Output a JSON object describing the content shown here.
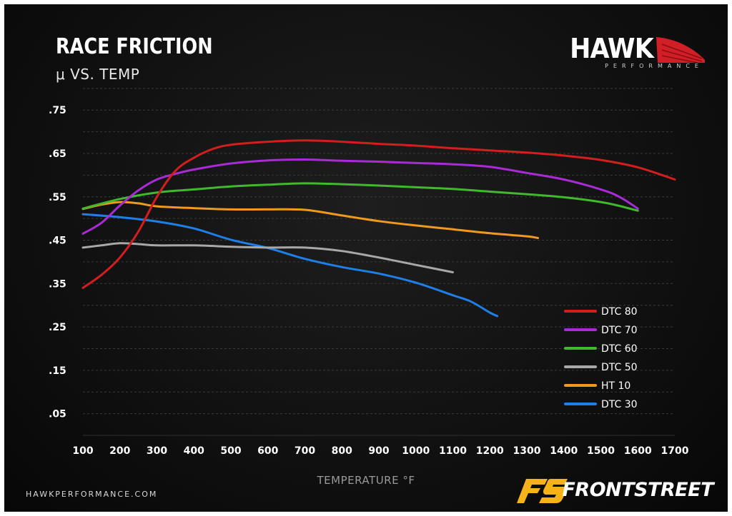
{
  "header": {
    "title": "RACE FRICTION",
    "subtitle": "μ VS. TEMP"
  },
  "brand": {
    "name": "HAWK",
    "tagline": "PERFORMANCE",
    "accent": "#d01f26"
  },
  "footer": {
    "website": "HAWKPERFORMANCE.COM",
    "partner": "FRONTSTREET",
    "partner_accent": "#f5b21a"
  },
  "chart_data": {
    "type": "line",
    "title": "RACE FRICTION",
    "subtitle": "μ VS. TEMP",
    "xlabel": "TEMPERATURE °F",
    "ylabel": "",
    "xlim": [
      100,
      1700
    ],
    "ylim": [
      0,
      0.78
    ],
    "x_ticks": [
      100,
      200,
      300,
      400,
      500,
      600,
      700,
      800,
      900,
      1000,
      1100,
      1200,
      1300,
      1400,
      1500,
      1600,
      1700
    ],
    "y_ticks": [
      0.05,
      0.15,
      0.25,
      0.35,
      0.45,
      0.55,
      0.65,
      0.75
    ],
    "y_tick_labels": [
      ".05",
      ".15",
      ".25",
      ".35",
      ".45",
      ".55",
      ".65",
      ".75"
    ],
    "grid": true,
    "legend_position": "bottom-right",
    "series": [
      {
        "name": "DTC 80",
        "color": "#d41e1e",
        "x": [
          100,
          150,
          200,
          250,
          300,
          350,
          400,
          450,
          500,
          600,
          700,
          800,
          900,
          1000,
          1100,
          1200,
          1300,
          1400,
          1500,
          1600,
          1700
        ],
        "y": [
          0.34,
          0.37,
          0.41,
          0.47,
          0.55,
          0.61,
          0.64,
          0.66,
          0.67,
          0.677,
          0.68,
          0.677,
          0.672,
          0.668,
          0.662,
          0.657,
          0.652,
          0.645,
          0.635,
          0.618,
          0.59
        ]
      },
      {
        "name": "DTC 70",
        "color": "#a82bd6",
        "x": [
          100,
          150,
          200,
          250,
          300,
          350,
          400,
          500,
          600,
          700,
          800,
          900,
          1000,
          1100,
          1200,
          1300,
          1400,
          1500,
          1550,
          1600
        ],
        "y": [
          0.465,
          0.49,
          0.53,
          0.565,
          0.59,
          0.603,
          0.613,
          0.627,
          0.634,
          0.636,
          0.633,
          0.631,
          0.628,
          0.625,
          0.619,
          0.605,
          0.59,
          0.567,
          0.55,
          0.523
        ]
      },
      {
        "name": "DTC 60",
        "color": "#41b82e",
        "x": [
          100,
          200,
          300,
          400,
          500,
          600,
          700,
          800,
          900,
          1000,
          1100,
          1200,
          1300,
          1400,
          1500,
          1550,
          1600
        ],
        "y": [
          0.523,
          0.545,
          0.56,
          0.567,
          0.574,
          0.578,
          0.581,
          0.579,
          0.576,
          0.572,
          0.568,
          0.562,
          0.556,
          0.549,
          0.538,
          0.529,
          0.518
        ]
      },
      {
        "name": "DTC 50",
        "color": "#a8a8a8",
        "x": [
          100,
          150,
          200,
          250,
          300,
          400,
          500,
          600,
          700,
          800,
          900,
          1000,
          1100
        ],
        "y": [
          0.433,
          0.438,
          0.443,
          0.441,
          0.438,
          0.438,
          0.435,
          0.433,
          0.433,
          0.425,
          0.41,
          0.393,
          0.376
        ]
      },
      {
        "name": "HT 10",
        "color": "#ef9a1e",
        "x": [
          100,
          150,
          200,
          250,
          300,
          400,
          500,
          600,
          700,
          800,
          900,
          1000,
          1100,
          1200,
          1300,
          1330
        ],
        "y": [
          0.522,
          0.532,
          0.538,
          0.535,
          0.528,
          0.524,
          0.521,
          0.521,
          0.52,
          0.507,
          0.494,
          0.484,
          0.475,
          0.466,
          0.459,
          0.455
        ]
      },
      {
        "name": "DTC 30",
        "color": "#1e7fe6",
        "x": [
          100,
          200,
          300,
          400,
          500,
          600,
          700,
          800,
          900,
          1000,
          1100,
          1150,
          1200,
          1220
        ],
        "y": [
          0.51,
          0.503,
          0.493,
          0.477,
          0.451,
          0.432,
          0.407,
          0.388,
          0.373,
          0.352,
          0.323,
          0.308,
          0.283,
          0.275
        ]
      }
    ]
  }
}
